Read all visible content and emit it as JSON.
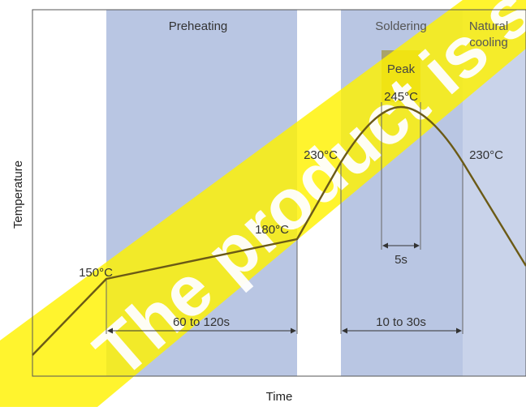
{
  "diagram": {
    "axis_x_label": "Time",
    "axis_y_label": "Temperature",
    "zones": {
      "preheating": "Preheating",
      "soldering": "Soldering",
      "cooling_line1": "Natural",
      "cooling_line2": "cooling",
      "peak": "Peak"
    },
    "temperatures": {
      "t150": "150°C",
      "t180": "180°C",
      "t230_left": "230°C",
      "t230_right": "230°C",
      "t245": "245°C"
    },
    "durations": {
      "preheat": "60 to 120s",
      "soldering": "10 to 30s",
      "peak": "5s"
    },
    "watermark": "The product is stopped",
    "colors": {
      "curve": "#6b5a16",
      "preheat_zone": "#b9c6e3",
      "soldering_zone": "#b9c6e3",
      "cooling_zone": "#b9c6e3",
      "peak_zone": "#a9a36a",
      "watermark": "#fff200",
      "text": "#333333"
    }
  }
}
